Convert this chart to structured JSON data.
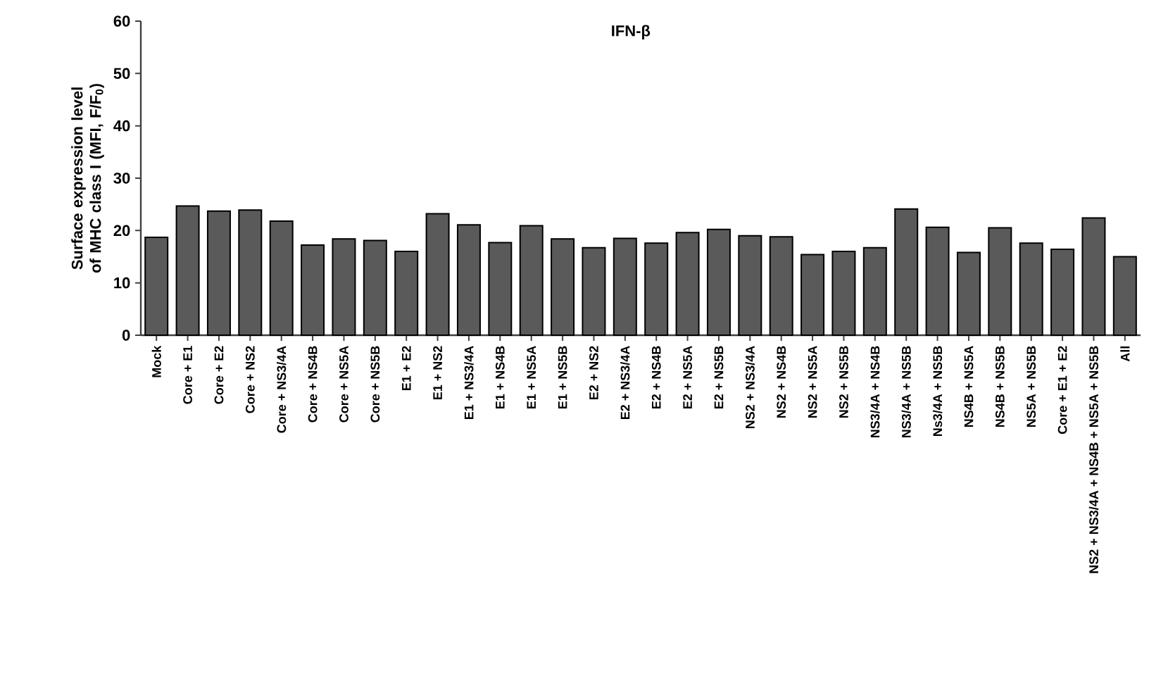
{
  "chart_data": {
    "type": "bar",
    "title": "IFN-β",
    "ylabel": "Surface expression level of MHC class I (MFI, F/F$_{0}$)",
    "categories": [
      "Mock",
      "Core + E1",
      "Core + E2",
      "Core + NS2",
      "Core + NS3/4A",
      "Core + NS4B",
      "Core + NS5A",
      "Core + NS5B",
      "E1 + E2",
      "E1 + NS2",
      "E1 + NS3/4A",
      "E1 + NS4B",
      "E1 + NS5A",
      "E1 + NS5B",
      "E2 + NS2",
      "E2 + NS3/4A",
      "E2 + NS4B",
      "E2 + NS5A",
      "E2 + NS5B",
      "NS2 + NS3/4A",
      "NS2 + NS4B",
      "NS2 + NS5A",
      "NS2 + NS5B",
      "NS3/4A + NS4B",
      "NS3/4A + NS5B",
      "Ns3/4A + NS5B",
      "NS4B + NS5A",
      "NS4B + NS5B",
      "NS5A + NS5B",
      "Core + E1 + E2",
      "NS2 + NS3/4A + NS4B + NS5A + NS5B",
      "All"
    ],
    "values": [
      18.7,
      24.7,
      23.7,
      23.9,
      21.8,
      17.2,
      18.4,
      18.1,
      16.0,
      23.2,
      21.1,
      17.7,
      20.9,
      18.4,
      16.7,
      18.5,
      17.6,
      19.6,
      20.2,
      19.0,
      18.8,
      15.4,
      16.0,
      16.7,
      24.1,
      20.6,
      15.8,
      20.5,
      17.6,
      16.4,
      22.4,
      15.0
    ],
    "color": "#5a5a5a",
    "ylim": [
      0,
      60
    ],
    "yticks": [
      0,
      10,
      20,
      30,
      40,
      50,
      60
    ]
  }
}
